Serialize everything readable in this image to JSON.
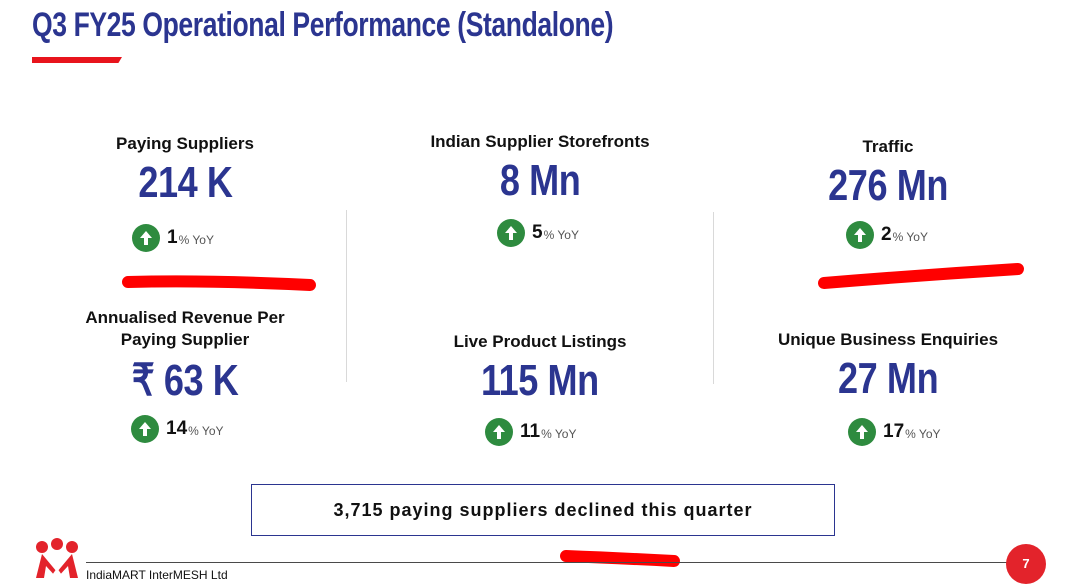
{
  "header": {
    "title": "Q3 FY25 Operational Performance (Standalone)"
  },
  "kpis": [
    {
      "label": "Paying Suppliers",
      "value": "214 K",
      "yoy": "1",
      "yoy_unit": "% YoY"
    },
    {
      "label": "Indian Supplier Storefronts",
      "value": "8 Mn",
      "yoy": "5",
      "yoy_unit": "% YoY"
    },
    {
      "label": "Traffic",
      "value": "276 Mn",
      "yoy": "2",
      "yoy_unit": "% YoY"
    },
    {
      "label": "Annualised Revenue Per Paying Supplier",
      "value": "₹ 63 K",
      "yoy": "14",
      "yoy_unit": "% YoY"
    },
    {
      "label": "Live Product Listings",
      "value": "115 Mn",
      "yoy": "11",
      "yoy_unit": "% YoY"
    },
    {
      "label": "Unique Business Enquiries",
      "value": "27 Mn",
      "yoy": "17",
      "yoy_unit": "% YoY"
    }
  ],
  "callout": {
    "text": "3,715 paying suppliers declined this quarter"
  },
  "footer": {
    "company": "IndiaMART InterMESH Ltd",
    "page_number": "7"
  },
  "colors": {
    "brand_blue": "#2b3590",
    "brand_red": "#e3232b",
    "up_green": "#2e8b3f",
    "annotation_red": "#ff0000"
  },
  "icons": {
    "yoy_indicator": "arrow-up-circle-icon",
    "logo": "indiamart-logo-icon"
  }
}
